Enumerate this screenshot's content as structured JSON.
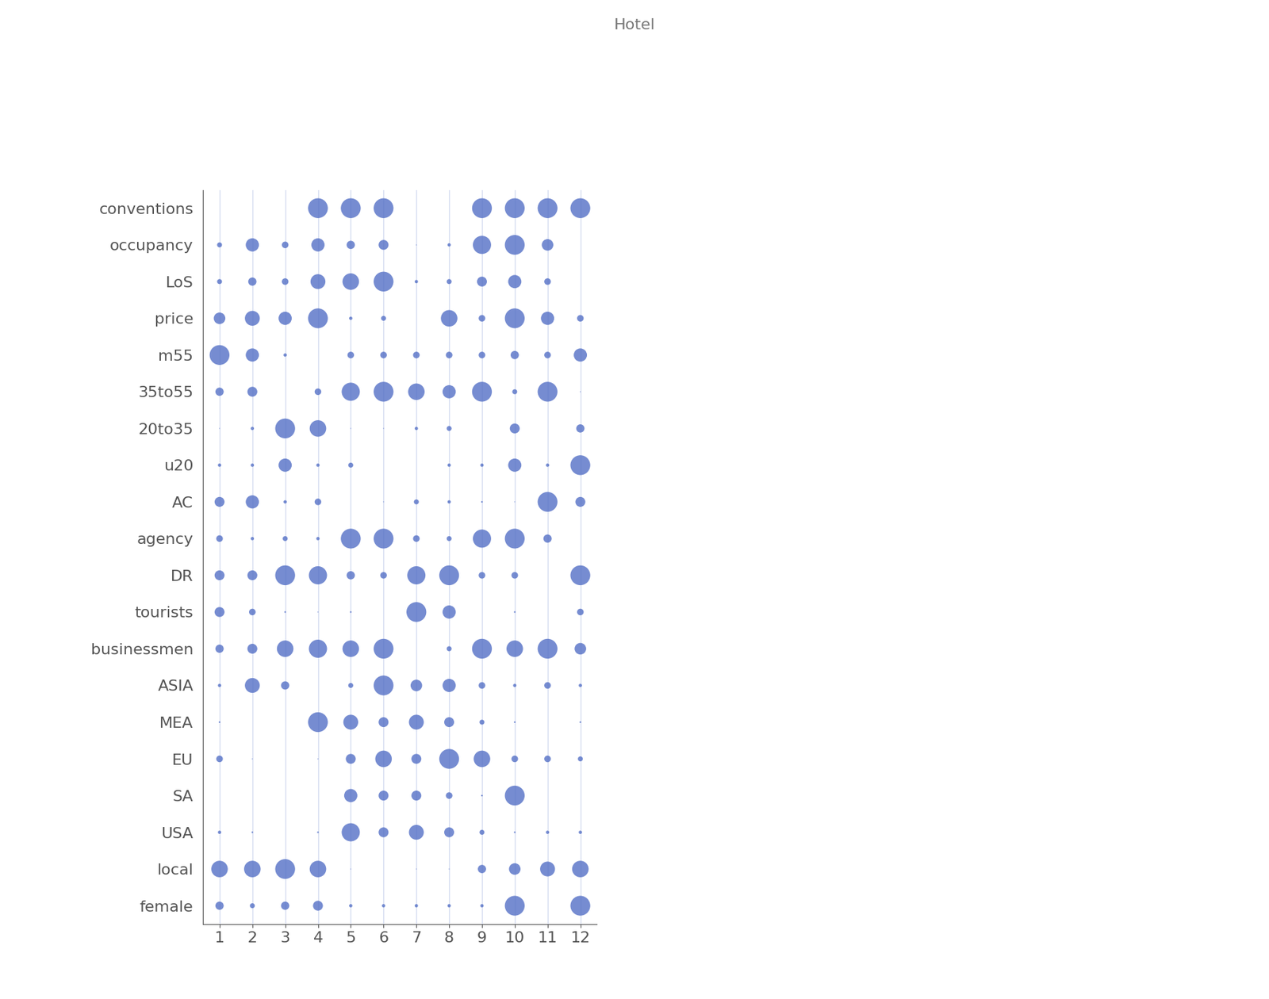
{
  "chart_data": {
    "type": "scatter",
    "title": "Hotel",
    "categories": [
      "conventions",
      "occupancy",
      "LoS",
      "price",
      "m55",
      "35to55",
      "20to35",
      "u20",
      "AC",
      "agency",
      "DR",
      "tourists",
      "businessmen",
      "ASIA",
      "MEA",
      "EU",
      "SA",
      "USA",
      "local",
      "female"
    ],
    "x": [
      1,
      2,
      3,
      4,
      5,
      6,
      7,
      8,
      9,
      10,
      11,
      12
    ],
    "sizes": [
      [
        0,
        0,
        0,
        12,
        12,
        12,
        0,
        0,
        12,
        12,
        12,
        12
      ],
      [
        3,
        8,
        4,
        8,
        5,
        6,
        0.5,
        2,
        11,
        12,
        7,
        0
      ],
      [
        3,
        5,
        4,
        9,
        10,
        12,
        2,
        3,
        6,
        8,
        4,
        0
      ],
      [
        7,
        9,
        8,
        12,
        2,
        3,
        0,
        10,
        4,
        12,
        8,
        4
      ],
      [
        12,
        8,
        2,
        0,
        4,
        4,
        4,
        4,
        4,
        5,
        4,
        8
      ],
      [
        5,
        6,
        0,
        4,
        11,
        12,
        10,
        8,
        12,
        3,
        12,
        0.5
      ],
      [
        0.5,
        2,
        12,
        10,
        0.5,
        0.5,
        2,
        3,
        0,
        6,
        0,
        5
      ],
      [
        2,
        2,
        8,
        2,
        3,
        0,
        0,
        2,
        2,
        8,
        2,
        12
      ],
      [
        6,
        8,
        2,
        4,
        0,
        0.5,
        3,
        2,
        1,
        0.5,
        12,
        6
      ],
      [
        4,
        2,
        3,
        2,
        12,
        12,
        4,
        3,
        11,
        12,
        5,
        0
      ],
      [
        6,
        6,
        12,
        11,
        5,
        4,
        11,
        12,
        4,
        4,
        0,
        12
      ],
      [
        6,
        4,
        1,
        0.5,
        1,
        0,
        12,
        8,
        0,
        1,
        0,
        4
      ],
      [
        5,
        6,
        10,
        11,
        10,
        12,
        0,
        3,
        12,
        10,
        12,
        7
      ],
      [
        2,
        9,
        5,
        0,
        3,
        12,
        7,
        8,
        4,
        2,
        4,
        2
      ],
      [
        1,
        0,
        0,
        12,
        9,
        6,
        9,
        6,
        3,
        1,
        0,
        1
      ],
      [
        4,
        0.5,
        0,
        0.5,
        6,
        10,
        6,
        12,
        10,
        4,
        4,
        3
      ],
      [
        0,
        0,
        0,
        0,
        8,
        6,
        6,
        4,
        1,
        12,
        0,
        0
      ],
      [
        2,
        1,
        0,
        1,
        11,
        6,
        9,
        6,
        3,
        1,
        2,
        2
      ],
      [
        10,
        10,
        12,
        10,
        0.5,
        0,
        0.5,
        0.5,
        5,
        7,
        9,
        10
      ],
      [
        5,
        3,
        5,
        6,
        2,
        2,
        2,
        2,
        2,
        12,
        0,
        12
      ]
    ],
    "xlim": [
      0.5,
      12.5
    ],
    "xticks": [
      1,
      2,
      3,
      4,
      5,
      6,
      7,
      8,
      9,
      10,
      11,
      12
    ],
    "color": "#5470c6",
    "grid": true
  }
}
